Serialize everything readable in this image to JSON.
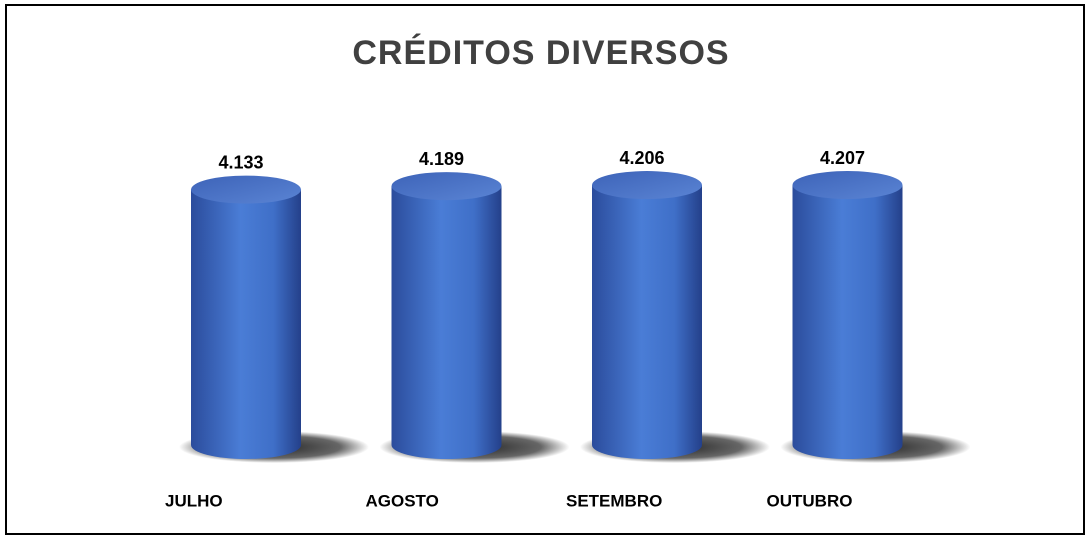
{
  "chart_data": {
    "type": "bar",
    "title": "CRÉDITOS DIVERSOS",
    "categories": [
      "JULHO",
      "AGOSTO",
      "SETEMBRO",
      "OUTUBRO"
    ],
    "values": [
      4133,
      4189,
      4206,
      4207
    ],
    "value_labels": [
      "4.133",
      "4.189",
      "4.206",
      "4.207"
    ],
    "color": "#3a6bc9"
  }
}
